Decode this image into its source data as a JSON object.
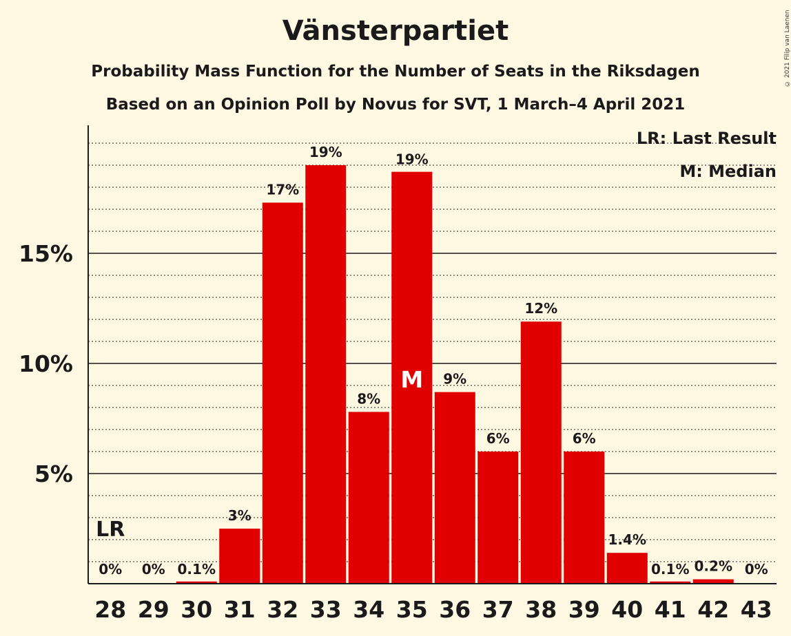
{
  "copyright": "© 2021 Filip van Laenen",
  "chart_data": {
    "type": "bar",
    "title": "Vänsterpartiet",
    "subtitle": "Probability Mass Function for the Number of Seats in the Riksdagen",
    "subtitle2": "Based on an Opinion Poll by Novus for SVT, 1 March–4 April 2021",
    "categories": [
      "28",
      "29",
      "30",
      "31",
      "32",
      "33",
      "34",
      "35",
      "36",
      "37",
      "38",
      "39",
      "40",
      "41",
      "42",
      "43"
    ],
    "values": [
      0,
      0,
      0.1,
      2.5,
      17.3,
      19.0,
      7.8,
      18.7,
      8.7,
      6.0,
      11.9,
      6.0,
      1.4,
      0.1,
      0.2,
      0
    ],
    "labels": [
      "0%",
      "0%",
      "0.1%",
      "3%",
      "17%",
      "19%",
      "8%",
      "19%",
      "9%",
      "6%",
      "12%",
      "6%",
      "1.4%",
      "0.1%",
      "0.2%",
      "0%"
    ],
    "yticks": [
      5,
      10,
      15
    ],
    "ytick_labels": [
      "5%",
      "10%",
      "15%"
    ],
    "ylim": [
      0,
      20.8
    ],
    "last_result_seat": "28",
    "last_result_label": "LR",
    "median_seat": "35",
    "median_label": "M",
    "legend": [
      "LR: Last Result",
      "M: Median"
    ],
    "bar_color": "#e00000",
    "xlabel": "",
    "ylabel": ""
  }
}
